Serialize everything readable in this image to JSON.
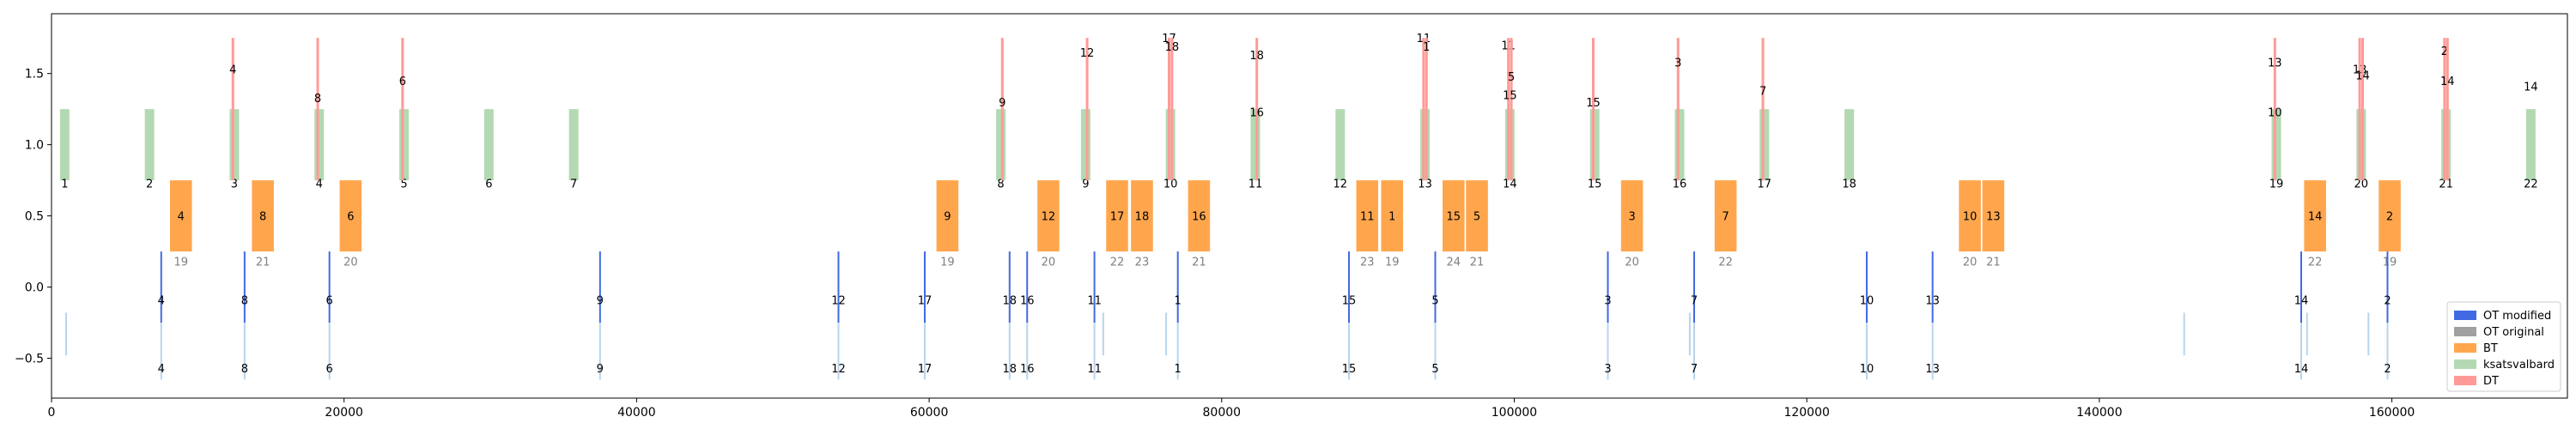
{
  "chart_data": {
    "type": "timeline",
    "xlim": [
      0,
      172000
    ],
    "ylim": [
      -0.78,
      1.92
    ],
    "x_ticks": [
      0,
      20000,
      40000,
      60000,
      80000,
      100000,
      120000,
      140000,
      160000
    ],
    "x_tick_labels": [
      "0",
      "20000",
      "40000",
      "60000",
      "80000",
      "100000",
      "120000",
      "140000",
      "160000"
    ],
    "y_ticks": [
      -0.5,
      0.0,
      0.5,
      1.0,
      1.5
    ],
    "y_tick_labels": [
      "−0.5",
      "0.0",
      "0.5",
      "1.0",
      "1.5"
    ],
    "legend": {
      "placement": "lower-right",
      "entries": [
        {
          "name": "OT modified",
          "color": "#4169e1"
        },
        {
          "name": "OT original",
          "color": "#a0a0a0"
        },
        {
          "name": "BT",
          "color": "#ffa64d"
        },
        {
          "name": "ksatsvalbard",
          "color": "#b3d9b3"
        },
        {
          "name": "DT",
          "color": "#ff9a96"
        }
      ]
    },
    "colors": {
      "ot_modified": "#4169e1",
      "ot_original": "#a0a0a0",
      "ot_light": "#b8d4ec",
      "bt": "#ffa64d",
      "ksatsvalbard": "#b3d9b3",
      "dt": "#ff9a96"
    },
    "ksat_passes": [
      {
        "x": 900,
        "label": "1"
      },
      {
        "x": 6700,
        "label": "2"
      },
      {
        "x": 12500,
        "label": "3"
      },
      {
        "x": 18300,
        "label": "4"
      },
      {
        "x": 24100,
        "label": "5"
      },
      {
        "x": 29900,
        "label": "6"
      },
      {
        "x": 35700,
        "label": "7"
      },
      {
        "x": 64900,
        "label": "8"
      },
      {
        "x": 70700,
        "label": "9"
      },
      {
        "x": 76500,
        "label": "10"
      },
      {
        "x": 82300,
        "label": "11"
      },
      {
        "x": 88100,
        "label": "12"
      },
      {
        "x": 93900,
        "label": "13"
      },
      {
        "x": 99700,
        "label": "14"
      },
      {
        "x": 105500,
        "label": "15"
      },
      {
        "x": 111300,
        "label": "16"
      },
      {
        "x": 117100,
        "label": "17"
      },
      {
        "x": 122900,
        "label": "18"
      },
      {
        "x": 152100,
        "label": "19"
      },
      {
        "x": 157900,
        "label": "20"
      },
      {
        "x": 163700,
        "label": "21"
      },
      {
        "x": 169500,
        "label": "22"
      }
    ],
    "bt_tasks": [
      {
        "start": 8100,
        "end": 9600,
        "label": "4",
        "station": "19"
      },
      {
        "start": 13700,
        "end": 15200,
        "label": "8",
        "station": "21"
      },
      {
        "start": 19700,
        "end": 21200,
        "label": "6",
        "station": "20"
      },
      {
        "start": 60500,
        "end": 62000,
        "label": "9",
        "station": "19"
      },
      {
        "start": 67400,
        "end": 68900,
        "label": "12",
        "station": "20"
      },
      {
        "start": 72100,
        "end": 73600,
        "label": "17",
        "station": "22"
      },
      {
        "start": 73800,
        "end": 75300,
        "label": "18",
        "station": "23"
      },
      {
        "start": 77700,
        "end": 79200,
        "label": "16",
        "station": "21"
      },
      {
        "start": 89200,
        "end": 90700,
        "label": "11",
        "station": "23"
      },
      {
        "start": 90900,
        "end": 92400,
        "label": "1",
        "station": "19"
      },
      {
        "start": 95100,
        "end": 96600,
        "label": "15",
        "station": "24"
      },
      {
        "start": 96700,
        "end": 98200,
        "label": "5",
        "station": "21"
      },
      {
        "start": 107300,
        "end": 108800,
        "label": "3",
        "station": "20"
      },
      {
        "start": 113700,
        "end": 115200,
        "label": "7",
        "station": "22"
      },
      {
        "start": 130400,
        "end": 131900,
        "label": "10",
        "station": "20"
      },
      {
        "start": 132000,
        "end": 133500,
        "label": "13",
        "station": "21"
      },
      {
        "start": 154000,
        "end": 155500,
        "label": "14",
        "station": "22"
      },
      {
        "start": 159100,
        "end": 160600,
        "label": "2",
        "station": "19"
      }
    ],
    "dt_tasks": [
      {
        "x": 12400,
        "label": "4",
        "ly": 1.5
      },
      {
        "x": 18200,
        "label": "8",
        "ly": 1.3
      },
      {
        "x": 24000,
        "label": "6",
        "ly": 1.42
      },
      {
        "x": 65000,
        "label": "9",
        "ly": 1.27
      },
      {
        "x": 70800,
        "label": "12",
        "ly": 1.62
      },
      {
        "x": 76400,
        "label": "17",
        "ly": 1.72
      },
      {
        "x": 76600,
        "label": "18",
        "ly": 1.66
      },
      {
        "x": 82400,
        "label": "18",
        "ly": 1.6
      },
      {
        "x": 93800,
        "label": "11",
        "ly": 1.72
      },
      {
        "x": 94000,
        "label": "1",
        "ly": 1.66
      },
      {
        "x": 99600,
        "label": "11",
        "ly": 1.67
      },
      {
        "x": 99800,
        "label": "5",
        "ly": 1.45
      },
      {
        "x": 105400,
        "label": "15",
        "ly": 1.27
      },
      {
        "x": 111200,
        "label": "3",
        "ly": 1.55
      },
      {
        "x": 117000,
        "label": "7",
        "ly": 1.35
      },
      {
        "x": 152000,
        "label": "13",
        "ly": 1.55
      },
      {
        "x": 157800,
        "label": "13",
        "ly": 1.5
      },
      {
        "x": 158000,
        "label": "14",
        "ly": 1.46
      },
      {
        "x": 163600,
        "label": "2",
        "ly": 1.63
      },
      {
        "x": 163800,
        "label": "14",
        "ly": 1.42
      }
    ],
    "dt_label_only": [
      {
        "x": 82400,
        "label": "16",
        "ly": 1.2
      },
      {
        "x": 99700,
        "label": "15",
        "ly": 1.32
      },
      {
        "x": 152000,
        "label": "10",
        "ly": 1.2
      },
      {
        "x": 169500,
        "label": "14",
        "ly": 1.38
      }
    ],
    "ot_tasks": [
      {
        "x": 7500,
        "label": "4"
      },
      {
        "x": 13200,
        "label": "8"
      },
      {
        "x": 19000,
        "label": "6"
      },
      {
        "x": 37500,
        "label": "9"
      },
      {
        "x": 53800,
        "label": "12"
      },
      {
        "x": 59700,
        "label": "17"
      },
      {
        "x": 65500,
        "label": "18"
      },
      {
        "x": 66700,
        "label": "16"
      },
      {
        "x": 71300,
        "label": "11"
      },
      {
        "x": 77000,
        "label": "1"
      },
      {
        "x": 88700,
        "label": "15"
      },
      {
        "x": 94600,
        "label": "5"
      },
      {
        "x": 106400,
        "label": "3"
      },
      {
        "x": 112300,
        "label": "7"
      },
      {
        "x": 124100,
        "label": "10"
      },
      {
        "x": 128600,
        "label": "13"
      },
      {
        "x": 153800,
        "label": "14"
      },
      {
        "x": 159700,
        "label": "2"
      }
    ],
    "ot_extra_marks": [
      1000,
      71900,
      76200,
      112000,
      145800,
      154200,
      158400
    ]
  }
}
